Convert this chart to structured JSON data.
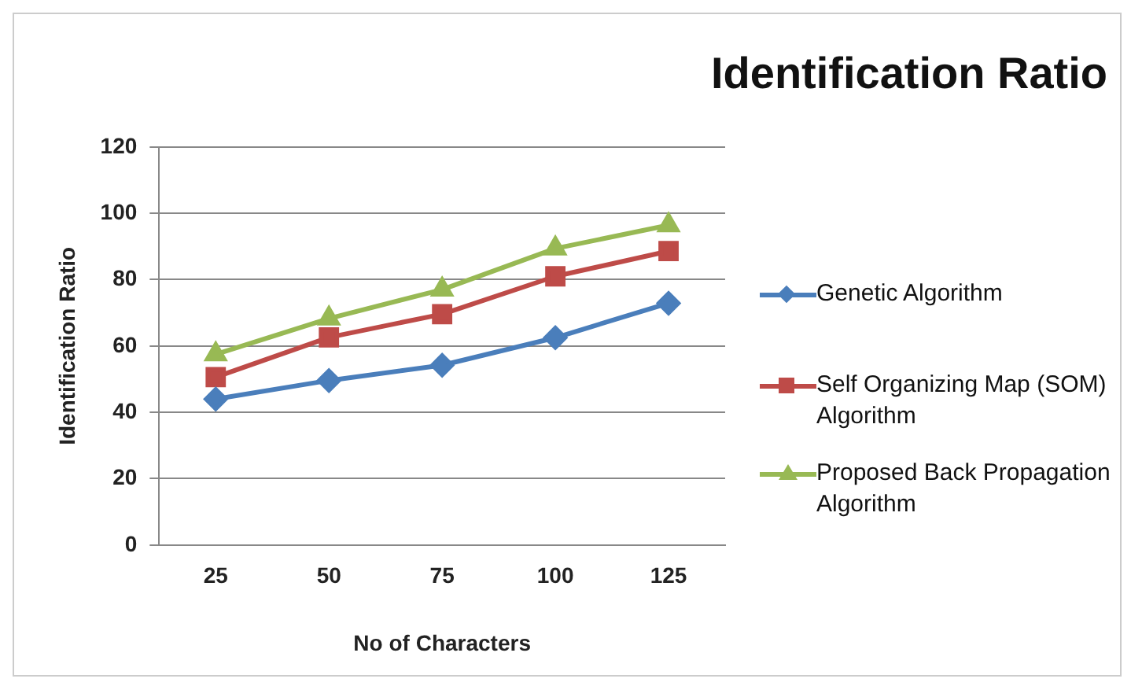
{
  "chart_data": {
    "type": "line",
    "title": "Identification Ratio",
    "xlabel": "No of Characters",
    "ylabel": "Identification Ratio",
    "categories": [
      "25",
      "50",
      "75",
      "100",
      "125"
    ],
    "ylim": [
      0,
      120
    ],
    "yticks": [
      0,
      20,
      40,
      60,
      80,
      100,
      120
    ],
    "grid": "y",
    "legend": "right",
    "series": [
      {
        "name": "Genetic Algorithm",
        "color": "#4a7ebb",
        "marker": "diamond",
        "values": [
          44,
          49.6,
          54.2,
          62.5,
          72.9
        ]
      },
      {
        "name": "Self Organizing Map (SOM) Algorithm",
        "color": "#be4b48",
        "marker": "square",
        "values": [
          50.6,
          62.6,
          69.6,
          81,
          88.6
        ]
      },
      {
        "name": "Proposed Back Propagation Algorithm",
        "color": "#98b954",
        "marker": "triangle",
        "values": [
          57.5,
          68.3,
          77,
          89.4,
          96.4
        ]
      }
    ]
  }
}
